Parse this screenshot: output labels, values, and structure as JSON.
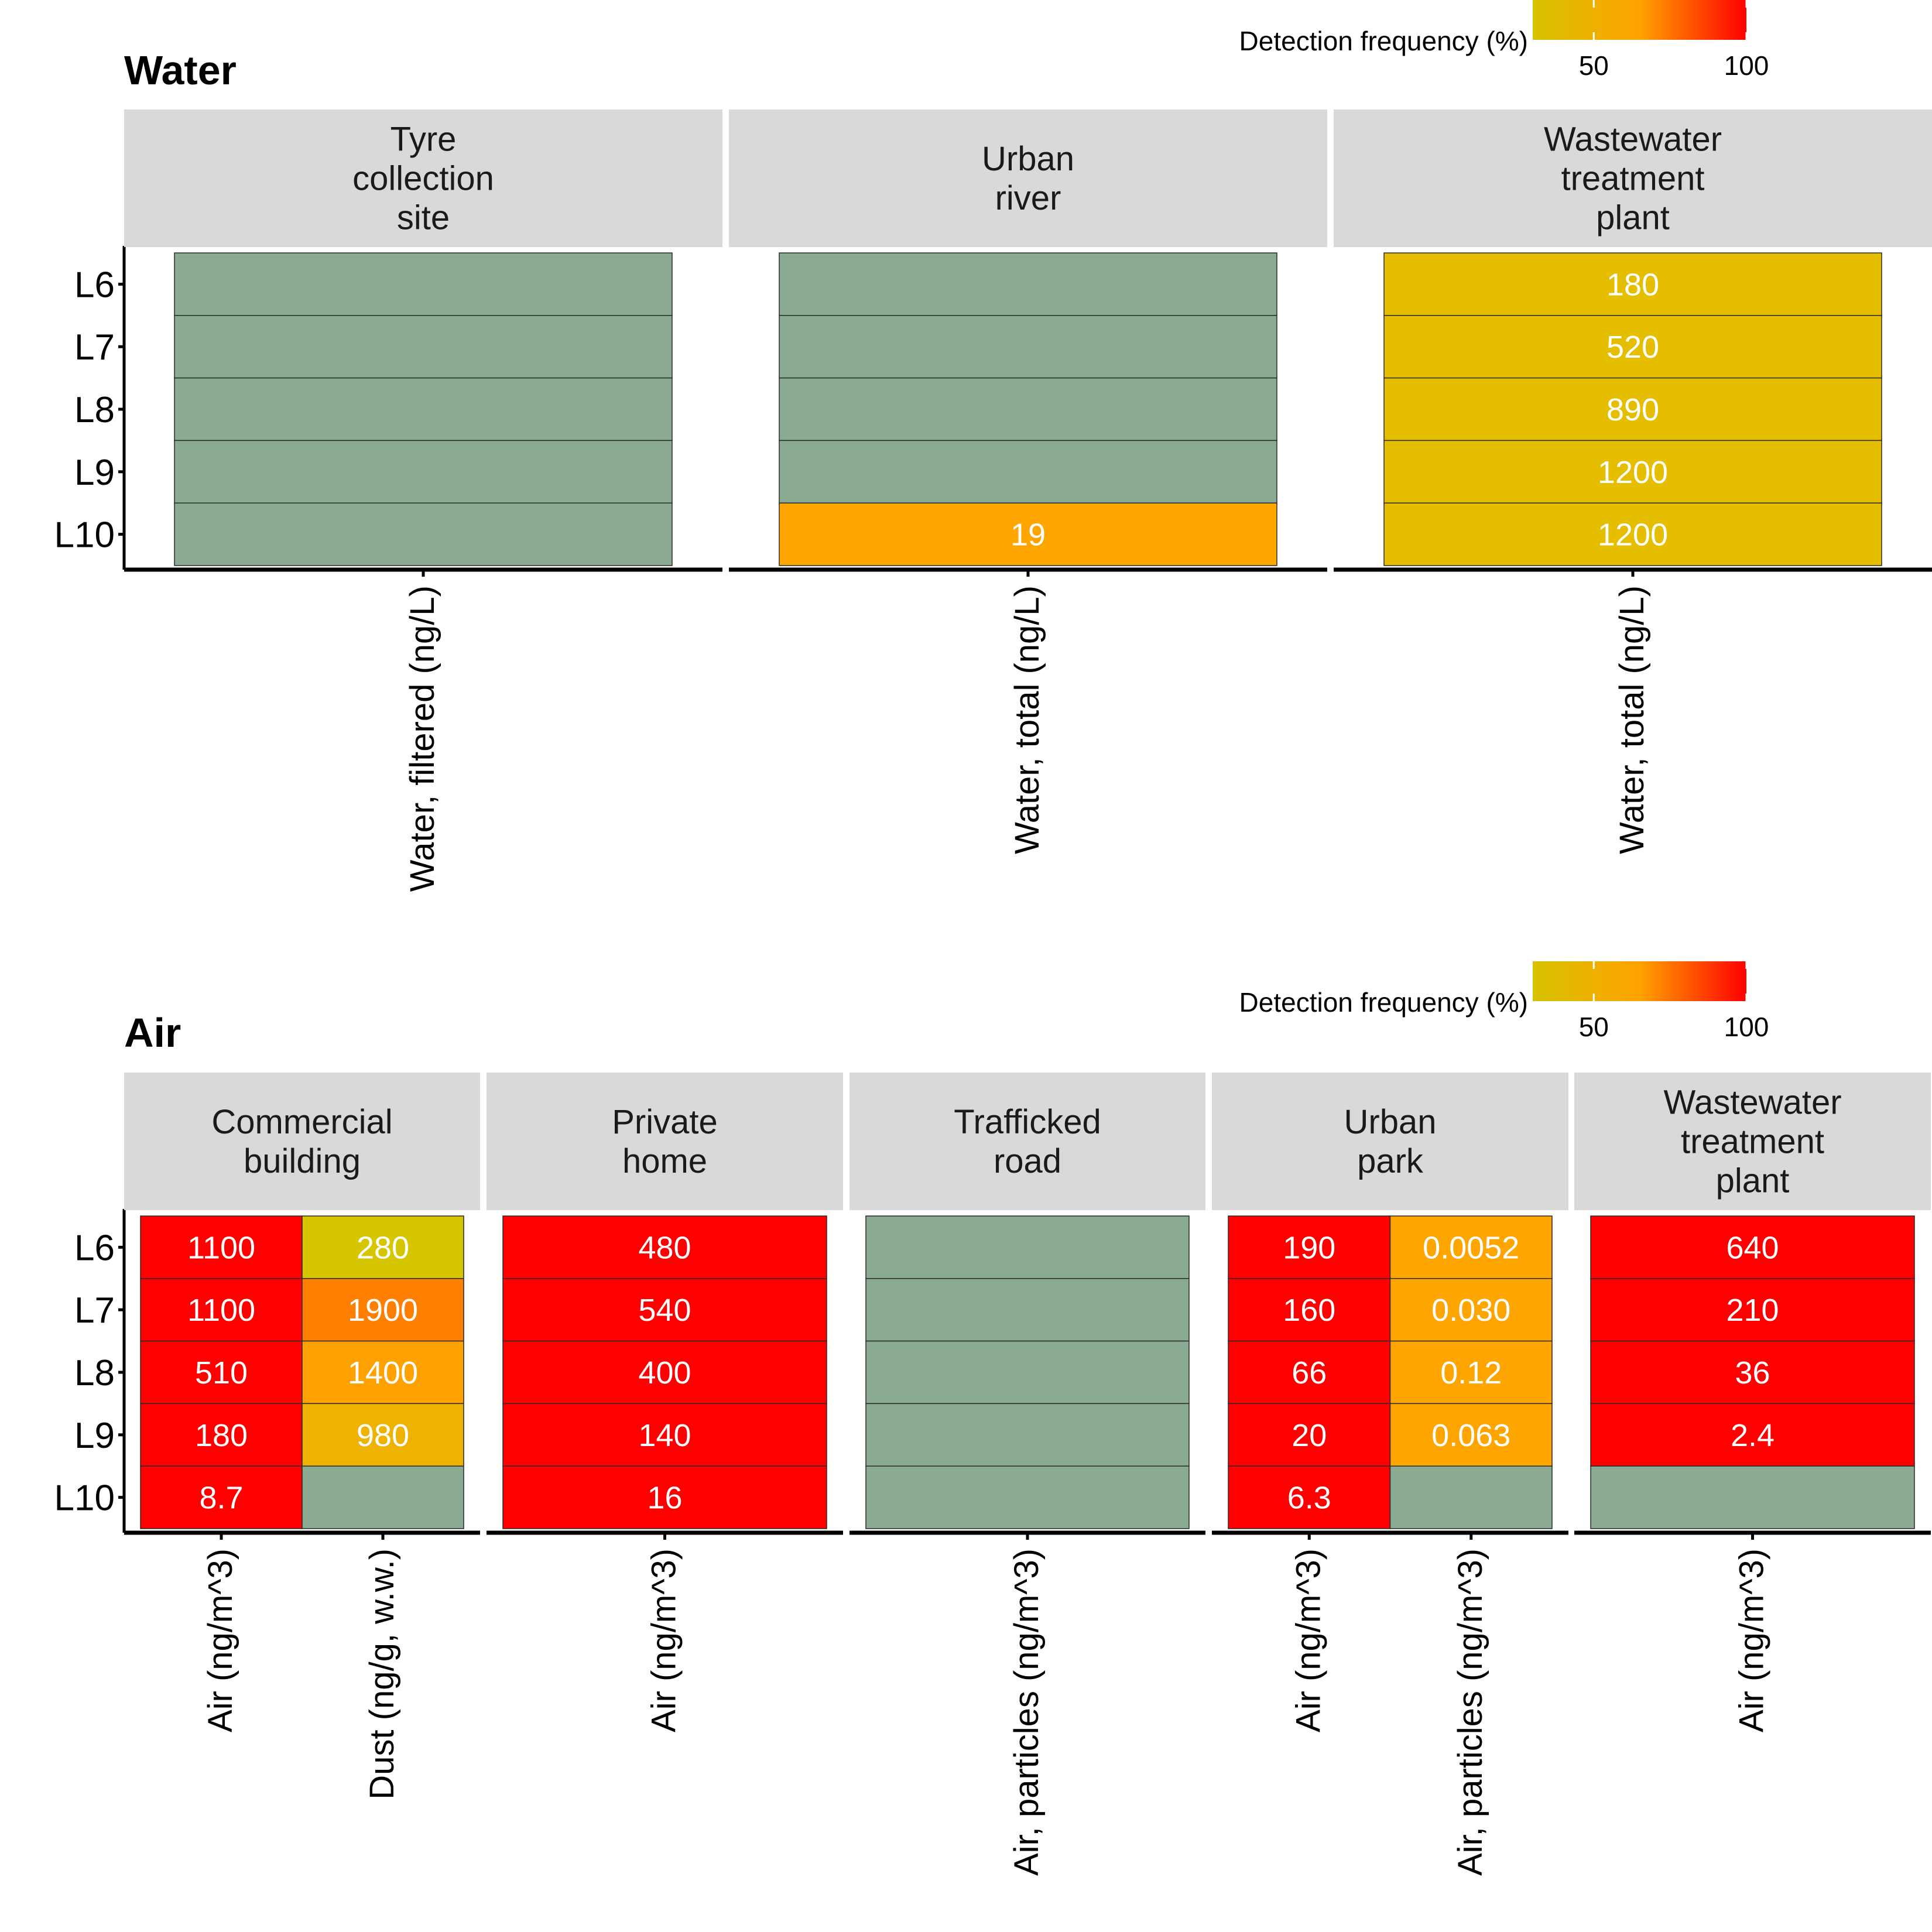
{
  "chart_data": [
    {
      "type": "heatmap",
      "title": "Water",
      "legend": {
        "title": "Detection frequency (%)",
        "ticks": [
          "50",
          "100"
        ],
        "tick_values": [
          50,
          100
        ],
        "range": [
          30,
          100
        ],
        "colors": [
          "#d6c200",
          "#ffa200",
          "#ff0000"
        ],
        "position": "top-right"
      },
      "rows": [
        "L6",
        "L7",
        "L8",
        "L9",
        "L10"
      ],
      "facets": [
        {
          "label": "Tyre\ncollection\nsite",
          "columns": [
            {
              "label": "Water, filtered (ng/L)",
              "cells": [
                {
                  "value": "",
                  "color": "#8aaa92"
                },
                {
                  "value": "",
                  "color": "#8aaa92"
                },
                {
                  "value": "",
                  "color": "#8aaa92"
                },
                {
                  "value": "",
                  "color": "#8aaa92"
                },
                {
                  "value": "",
                  "color": "#8aaa92"
                }
              ]
            }
          ]
        },
        {
          "label": "Urban\nriver",
          "columns": [
            {
              "label": "Water, total (ng/L)",
              "cells": [
                {
                  "value": "",
                  "color": "#8aaa92"
                },
                {
                  "value": "",
                  "color": "#8aaa92"
                },
                {
                  "value": "",
                  "color": "#8aaa92"
                },
                {
                  "value": "",
                  "color": "#8aaa92"
                },
                {
                  "value": "19",
                  "color": "#ffa500"
                }
              ]
            }
          ]
        },
        {
          "label": "Wastewater\ntreatment\nplant",
          "columns": [
            {
              "label": "Water, total (ng/L)",
              "cells": [
                {
                  "value": "180",
                  "color": "#e6be00"
                },
                {
                  "value": "520",
                  "color": "#e6be00"
                },
                {
                  "value": "890",
                  "color": "#e6be00"
                },
                {
                  "value": "1200",
                  "color": "#e6be00"
                },
                {
                  "value": "1200",
                  "color": "#e6be00"
                }
              ]
            }
          ]
        }
      ]
    },
    {
      "type": "heatmap",
      "title": "Air",
      "legend": {
        "title": "Detection frequency (%)",
        "ticks": [
          "50",
          "100"
        ],
        "tick_values": [
          50,
          100
        ],
        "range": [
          30,
          100
        ],
        "colors": [
          "#d6c200",
          "#ffa200",
          "#ff0000"
        ],
        "position": "top-right"
      },
      "rows": [
        "L6",
        "L7",
        "L8",
        "L9",
        "L10"
      ],
      "facets": [
        {
          "label": "Commercial\nbuilding",
          "columns": [
            {
              "label": "Air (ng/m^3)",
              "cells": [
                {
                  "value": "1100",
                  "color": "#ff0000"
                },
                {
                  "value": "1100",
                  "color": "#ff0000"
                },
                {
                  "value": "510",
                  "color": "#ff0000"
                },
                {
                  "value": "180",
                  "color": "#ff0000"
                },
                {
                  "value": "8.7",
                  "color": "#ff0000"
                }
              ]
            },
            {
              "label": "Dust (ng/g, w.w.)",
              "cells": [
                {
                  "value": "280",
                  "color": "#d5c600"
                },
                {
                  "value": "1900",
                  "color": "#ff7f00"
                },
                {
                  "value": "1400",
                  "color": "#ffa200"
                },
                {
                  "value": "980",
                  "color": "#eeb300"
                },
                {
                  "value": "",
                  "color": "#8aaa92"
                }
              ]
            }
          ]
        },
        {
          "label": "Private\nhome",
          "columns": [
            {
              "label": "Air (ng/m^3)",
              "cells": [
                {
                  "value": "480",
                  "color": "#ff0000"
                },
                {
                  "value": "540",
                  "color": "#ff0000"
                },
                {
                  "value": "400",
                  "color": "#ff0000"
                },
                {
                  "value": "140",
                  "color": "#ff0000"
                },
                {
                  "value": "16",
                  "color": "#ff0000"
                }
              ]
            }
          ]
        },
        {
          "label": "Trafficked\nroad",
          "columns": [
            {
              "label": "Air, particles (ng/m^3)",
              "cells": [
                {
                  "value": "",
                  "color": "#8aaa92"
                },
                {
                  "value": "",
                  "color": "#8aaa92"
                },
                {
                  "value": "",
                  "color": "#8aaa92"
                },
                {
                  "value": "",
                  "color": "#8aaa92"
                },
                {
                  "value": "",
                  "color": "#8aaa92"
                }
              ]
            }
          ]
        },
        {
          "label": "Urban\npark",
          "columns": [
            {
              "label": "Air (ng/m^3)",
              "cells": [
                {
                  "value": "190",
                  "color": "#ff0000"
                },
                {
                  "value": "160",
                  "color": "#ff0000"
                },
                {
                  "value": "66",
                  "color": "#ff0000"
                },
                {
                  "value": "20",
                  "color": "#ff0000"
                },
                {
                  "value": "6.3",
                  "color": "#ff0000"
                }
              ]
            },
            {
              "label": "Air, particles (ng/m^3)",
              "cells": [
                {
                  "value": "0.0052",
                  "color": "#ffa500"
                },
                {
                  "value": "0.030",
                  "color": "#ffa500"
                },
                {
                  "value": "0.12",
                  "color": "#ffa500"
                },
                {
                  "value": "0.063",
                  "color": "#ffa500"
                },
                {
                  "value": "",
                  "color": "#8aaa92"
                }
              ]
            }
          ]
        },
        {
          "label": "Wastewater\ntreatment\nplant",
          "columns": [
            {
              "label": "Air (ng/m^3)",
              "cells": [
                {
                  "value": "640",
                  "color": "#ff0000"
                },
                {
                  "value": "210",
                  "color": "#ff0000"
                },
                {
                  "value": "36",
                  "color": "#ff0000"
                },
                {
                  "value": "2.4",
                  "color": "#ff0000"
                },
                {
                  "value": "",
                  "color": "#8aaa92"
                }
              ]
            }
          ]
        }
      ]
    }
  ]
}
